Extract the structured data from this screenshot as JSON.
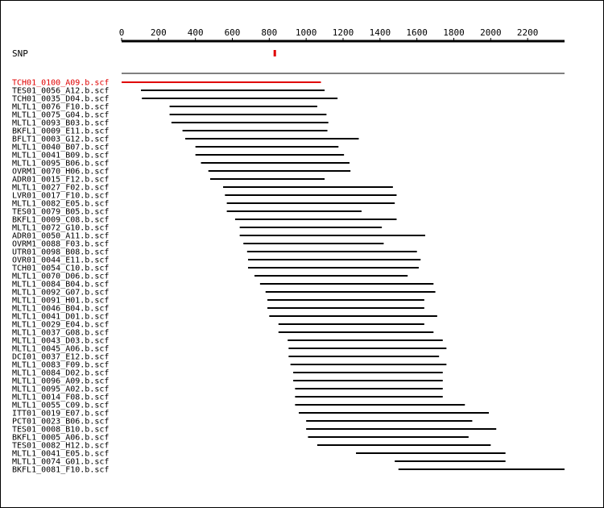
{
  "chart_data": {
    "type": "alignment",
    "axis": {
      "ticks": [
        0,
        200,
        400,
        600,
        800,
        1000,
        1200,
        1400,
        1600,
        1800,
        2000,
        2200
      ],
      "max": 2400
    },
    "snp": {
      "label": "SNP",
      "position": 830,
      "color": "#e00000"
    },
    "highlight_color": "#e00000",
    "reads": [
      {
        "name": "TCH01_0100_A09.b.scf",
        "start": 0,
        "end": 1080,
        "highlight": true
      },
      {
        "name": "TES01_0056_A12.b.scf",
        "start": 105,
        "end": 1100
      },
      {
        "name": "TCH01_0035_D04.b.scf",
        "start": 110,
        "end": 1170
      },
      {
        "name": "MLTL1_0076_F10.b.scf",
        "start": 260,
        "end": 1060
      },
      {
        "name": "MLTL1_0075_G04.b.scf",
        "start": 260,
        "end": 1110
      },
      {
        "name": "MLTL1_0093_B03.b.scf",
        "start": 270,
        "end": 1120
      },
      {
        "name": "BKFL1_0009_E11.b.scf",
        "start": 330,
        "end": 1115
      },
      {
        "name": "BFLT1_0003_G12.b.scf",
        "start": 345,
        "end": 1285
      },
      {
        "name": "MLTL1_0040_B07.b.scf",
        "start": 400,
        "end": 1175
      },
      {
        "name": "MLTL1_0041_B09.b.scf",
        "start": 400,
        "end": 1205
      },
      {
        "name": "MLTL1_0095_B06.b.scf",
        "start": 430,
        "end": 1235
      },
      {
        "name": "OVRM1_0070_H06.b.scf",
        "start": 470,
        "end": 1240
      },
      {
        "name": "ADR01_0015_F12.b.scf",
        "start": 480,
        "end": 1100
      },
      {
        "name": "MLTL1_0027_F02.b.scf",
        "start": 550,
        "end": 1470
      },
      {
        "name": "LVR01_0017_F10.b.scf",
        "start": 560,
        "end": 1490
      },
      {
        "name": "MLTL1_0082_E05.b.scf",
        "start": 570,
        "end": 1480
      },
      {
        "name": "TES01_0079_B05.b.scf",
        "start": 570,
        "end": 1300
      },
      {
        "name": "BKFL1_0009_C08.b.scf",
        "start": 615,
        "end": 1490
      },
      {
        "name": "MLTL1_0072_G10.b.scf",
        "start": 640,
        "end": 1410
      },
      {
        "name": "ADR01_0050_A11.b.scf",
        "start": 640,
        "end": 1645
      },
      {
        "name": "OVRM1_0088_F03.b.scf",
        "start": 660,
        "end": 1420
      },
      {
        "name": "UTR01_0098_B08.b.scf",
        "start": 680,
        "end": 1600
      },
      {
        "name": "OVR01_0044_E11.b.scf",
        "start": 685,
        "end": 1620
      },
      {
        "name": "TCH01_0054_C10.b.scf",
        "start": 685,
        "end": 1610
      },
      {
        "name": "MLTL1_0070_D06.b.scf",
        "start": 720,
        "end": 1550
      },
      {
        "name": "MLTL1_0084_B04.b.scf",
        "start": 750,
        "end": 1690
      },
      {
        "name": "MLTL1_0092_G07.b.scf",
        "start": 780,
        "end": 1700
      },
      {
        "name": "MLTL1_0091_H01.b.scf",
        "start": 790,
        "end": 1640
      },
      {
        "name": "MLTL1_0046_B04.b.scf",
        "start": 790,
        "end": 1640
      },
      {
        "name": "MLTL1_0041_D01.b.scf",
        "start": 800,
        "end": 1710
      },
      {
        "name": "MLTL1_0029_E04.b.scf",
        "start": 850,
        "end": 1640
      },
      {
        "name": "MLTL1_0037_G08.b.scf",
        "start": 850,
        "end": 1690
      },
      {
        "name": "MLTL1_0043_D03.b.scf",
        "start": 900,
        "end": 1740
      },
      {
        "name": "MLTL1_0045_A06.b.scf",
        "start": 905,
        "end": 1760
      },
      {
        "name": "DCI01_0037_E12.b.scf",
        "start": 905,
        "end": 1720
      },
      {
        "name": "MLTL1_0083_F09.b.scf",
        "start": 915,
        "end": 1760
      },
      {
        "name": "MLTL1_0084_D02.b.scf",
        "start": 930,
        "end": 1740
      },
      {
        "name": "MLTL1_0096_A09.b.scf",
        "start": 930,
        "end": 1740
      },
      {
        "name": "MLTL1_0095_A02.b.scf",
        "start": 940,
        "end": 1740
      },
      {
        "name": "MLTL1_0014_F08.b.scf",
        "start": 940,
        "end": 1740
      },
      {
        "name": "MLTL1_0055_C09.b.scf",
        "start": 940,
        "end": 1860
      },
      {
        "name": "ITT01_0019_E07.b.scf",
        "start": 960,
        "end": 1990
      },
      {
        "name": "PCT01_0023_B06.b.scf",
        "start": 1000,
        "end": 1900
      },
      {
        "name": "TES01_0008_B10.b.scf",
        "start": 1000,
        "end": 2030
      },
      {
        "name": "BKFL1_0005_A06.b.scf",
        "start": 1010,
        "end": 1880
      },
      {
        "name": "TES01_0082_H12.b.scf",
        "start": 1060,
        "end": 2000
      },
      {
        "name": "MLTL1_0041_E05.b.scf",
        "start": 1270,
        "end": 2080
      },
      {
        "name": "MLTL1_0074_G01.b.scf",
        "start": 1480,
        "end": 2080
      },
      {
        "name": "BKFL1_0081_F10.b.scf",
        "start": 1500,
        "end": 2400
      }
    ]
  }
}
